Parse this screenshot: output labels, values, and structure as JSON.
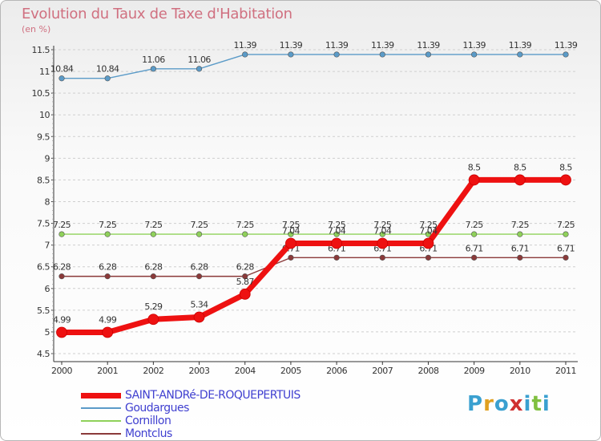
{
  "header": {
    "title": "Evolution du Taux de Taxe d'Habitation",
    "subtitle": "(en %)"
  },
  "brand": {
    "text": "Proxiti",
    "letter_colors": [
      "#3aa0d0",
      "#e0a020",
      "#3aa0d0",
      "#d03030",
      "#3aa0d0",
      "#80c040",
      "#3aa0d0"
    ]
  },
  "chart_data": {
    "type": "line",
    "title": "Evolution du Taux de Taxe d'Habitation",
    "ylabel": "(en %)",
    "xlabel": "",
    "ylim": [
      4.5,
      11.5
    ],
    "y_ticks": [
      "4.5",
      "5",
      "5.5",
      "6",
      "6.5",
      "7",
      "7.5",
      "8",
      "8.5",
      "9",
      "9.5",
      "10",
      "10.5",
      "11",
      "11.5"
    ],
    "x": [
      "2000",
      "2001",
      "2002",
      "2003",
      "2004",
      "2005",
      "2006",
      "2007",
      "2008",
      "2009",
      "2010",
      "2011"
    ],
    "grid": "horizontal-dashed",
    "series": [
      {
        "name": "Goudargues",
        "color": "#5b9bc8",
        "values": [
          10.84,
          10.84,
          11.06,
          11.06,
          11.39,
          11.39,
          11.39,
          11.39,
          11.39,
          11.39,
          11.39,
          11.39
        ],
        "labels": [
          "10.84",
          "10.84",
          "11.06",
          "11.06",
          "11.39",
          "11.39",
          "11.39",
          "11.39",
          "11.39",
          "11.39",
          "11.39",
          "11.39"
        ]
      },
      {
        "name": "Cornillon",
        "color": "#8fd15a",
        "values": [
          7.25,
          7.25,
          7.25,
          7.25,
          7.25,
          7.25,
          7.25,
          7.25,
          7.25,
          7.25,
          7.25,
          7.25
        ],
        "labels": [
          "7.25",
          "7.25",
          "7.25",
          "7.25",
          "7.25",
          "7.25",
          "7.25",
          "7.25",
          "7.25",
          "7.25",
          "7.25",
          "7.25"
        ]
      },
      {
        "name": "Montclus",
        "color": "#8b3a3a",
        "values": [
          6.28,
          6.28,
          6.28,
          6.28,
          6.28,
          6.71,
          6.71,
          6.71,
          6.71,
          6.71,
          6.71,
          6.71
        ],
        "labels": [
          "6.28",
          "6.28",
          "6.28",
          "6.28",
          "6.28",
          "6.71",
          "6.71",
          "6.71",
          "6.71",
          "6.71",
          "6.71",
          "6.71"
        ]
      },
      {
        "name": "SAINT-ANDRé-DE-ROQUEPERTUIS",
        "color": "#ee1111",
        "values": [
          4.99,
          4.99,
          5.29,
          5.34,
          5.87,
          7.04,
          7.04,
          7.04,
          7.04,
          8.5,
          8.5,
          8.5
        ],
        "labels": [
          "4.99",
          "4.99",
          "5.29",
          "5.34",
          "5.87",
          "7.04",
          "7.04",
          "7.04",
          "7.04",
          "8.5",
          "8.5",
          "8.5"
        ]
      }
    ],
    "legend": {
      "placement": "bottom-left",
      "items": [
        "SAINT-ANDRé-DE-ROQUEPERTUIS",
        "Goudargues",
        "Cornillon",
        "Montclus"
      ],
      "colors": [
        "#ee1111",
        "#5b9bc8",
        "#8fd15a",
        "#8b3a3a"
      ]
    }
  }
}
